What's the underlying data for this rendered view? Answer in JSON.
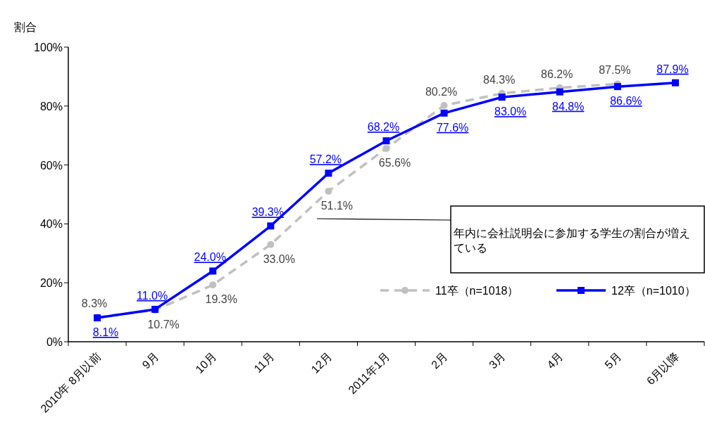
{
  "chart_data": {
    "type": "line",
    "ylabel": "割合",
    "categories": [
      "2010年 8月以前",
      "9月",
      "10月",
      "11月",
      "12月",
      "2011年1月",
      "2月",
      "3月",
      "4月",
      "5月",
      "6月以降"
    ],
    "ylim": [
      0,
      100
    ],
    "yticks": [
      {
        "value": 0,
        "label": "0%"
      },
      {
        "value": 20,
        "label": "20%"
      },
      {
        "value": 40,
        "label": "40%"
      },
      {
        "value": 60,
        "label": "60%"
      },
      {
        "value": 80,
        "label": "80%"
      },
      {
        "value": 100,
        "label": "100%"
      }
    ],
    "grid": false,
    "legend": "bottom right",
    "data_labels": true,
    "series": [
      {
        "name": "11卒（n=1018）",
        "color": "#c0c0c0",
        "line_style": "dashed",
        "marker": "circle",
        "values": [
          8.3,
          10.7,
          19.3,
          33.0,
          51.1,
          65.6,
          80.2,
          84.3,
          86.2,
          87.5,
          null
        ],
        "value_labels": [
          "8.3%",
          "10.7%",
          "19.3%",
          "33.0%",
          "51.1%",
          "65.6%",
          "80.2%",
          "84.3%",
          "86.2%",
          "87.5%",
          null
        ]
      },
      {
        "name": "12卒（n=1010）",
        "color": "#0000ff",
        "line_style": "solid",
        "marker": "square",
        "values": [
          8.1,
          11.0,
          24.0,
          39.3,
          57.2,
          68.2,
          77.6,
          83.0,
          84.8,
          86.6,
          87.9
        ],
        "value_labels": [
          "8.1%",
          "11.0%",
          "24.0%",
          "39.3%",
          "57.2%",
          "68.2%",
          "77.6%",
          "83.0%",
          "84.8%",
          "86.6%",
          "87.9%"
        ]
      }
    ],
    "annotations": [
      "年内に会社説明会に参加する学生の割合が増えている"
    ]
  }
}
